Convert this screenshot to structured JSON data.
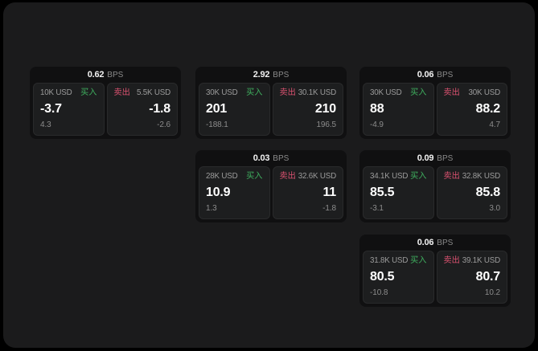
{
  "colors": {
    "page_bg": "#000000",
    "surface_bg": "#1b1b1c",
    "card_bg": "#101011",
    "pane_bg": "#1d1e1f",
    "buy_green": "#3fb05f",
    "sell_red": "#dd5271"
  },
  "cards": [
    {
      "bps_value": "0.62",
      "bps_label": "BPS",
      "buy": {
        "amount": "10K USD",
        "tag": "买入",
        "value": "-3.7",
        "sub": "4.3"
      },
      "sell": {
        "tag": "卖出",
        "amount": "5.5K USD",
        "value": "-1.8",
        "sub": "-2.6"
      }
    },
    {
      "bps_value": "2.92",
      "bps_label": "BPS",
      "buy": {
        "amount": "30K USD",
        "tag": "买入",
        "value": "201",
        "sub": "-188.1"
      },
      "sell": {
        "tag": "卖出",
        "amount": "30.1K USD",
        "value": "210",
        "sub": "196.5"
      }
    },
    {
      "bps_value": "0.06",
      "bps_label": "BPS",
      "buy": {
        "amount": "30K USD",
        "tag": "买入",
        "value": "88",
        "sub": "-4.9"
      },
      "sell": {
        "tag": "卖出",
        "amount": "30K USD",
        "value": "88.2",
        "sub": "4.7"
      }
    },
    {
      "bps_value": "0.03",
      "bps_label": "BPS",
      "buy": {
        "amount": "28K USD",
        "tag": "买入",
        "value": "10.9",
        "sub": "1.3"
      },
      "sell": {
        "tag": "卖出",
        "amount": "32.6K USD",
        "value": "11",
        "sub": "-1.8"
      }
    },
    {
      "bps_value": "0.09",
      "bps_label": "BPS",
      "buy": {
        "amount": "34.1K USD",
        "tag": "买入",
        "value": "85.5",
        "sub": "-3.1"
      },
      "sell": {
        "tag": "卖出",
        "amount": "32.8K USD",
        "value": "85.8",
        "sub": "3.0"
      }
    },
    {
      "bps_value": "0.06",
      "bps_label": "BPS",
      "buy": {
        "amount": "31.8K USD",
        "tag": "买入",
        "value": "80.5",
        "sub": "-10.8"
      },
      "sell": {
        "tag": "卖出",
        "amount": "39.1K USD",
        "value": "80.7",
        "sub": "10.2"
      }
    }
  ]
}
